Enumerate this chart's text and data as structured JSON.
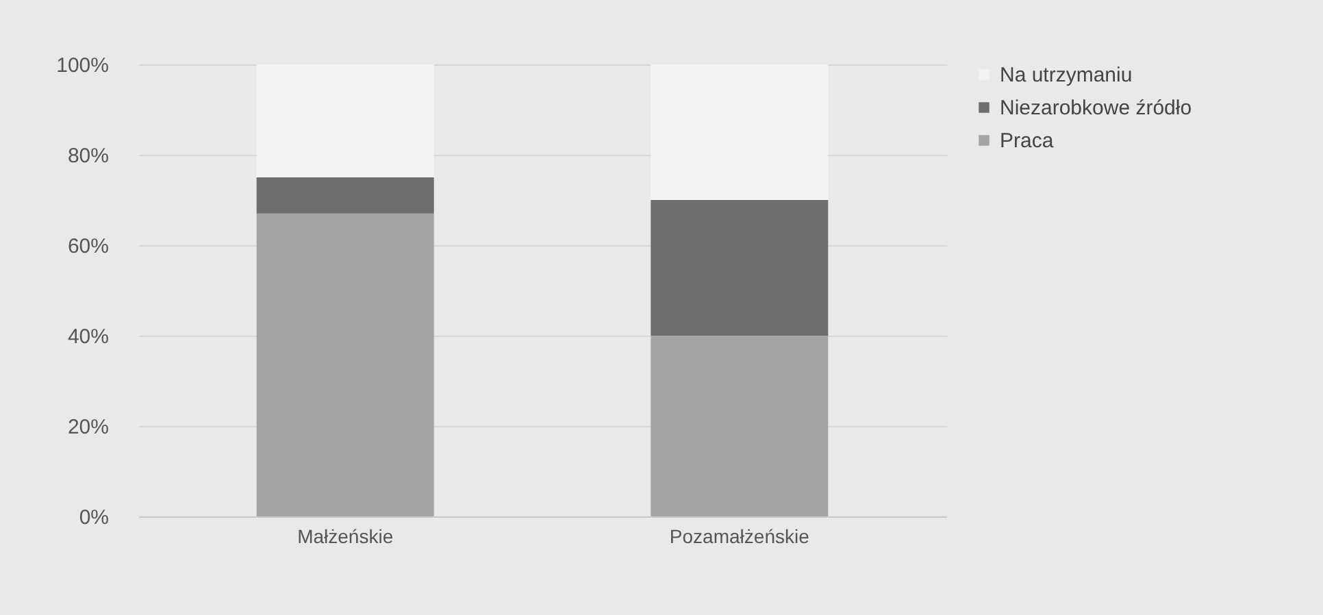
{
  "chart_data": {
    "type": "bar",
    "stacked": true,
    "categories": [
      "Małżeńskie",
      "Pozamałżeńskie"
    ],
    "series": [
      {
        "name": "Praca",
        "color": "#a4a4a4",
        "values": [
          67,
          40
        ]
      },
      {
        "name": "Niezarobkowe źródło",
        "color": "#6e6e6e",
        "values": [
          8,
          30
        ]
      },
      {
        "name": "Na utrzymaniu",
        "color": "#f3f3f3",
        "values": [
          25,
          30
        ]
      }
    ],
    "ylim": [
      0,
      100
    ],
    "yticks": [
      {
        "value": 0,
        "label": "0%"
      },
      {
        "value": 20,
        "label": "20%"
      },
      {
        "value": 40,
        "label": "40%"
      },
      {
        "value": 60,
        "label": "60%"
      },
      {
        "value": 80,
        "label": "80%"
      },
      {
        "value": 100,
        "label": "100%"
      }
    ],
    "grid": "y",
    "legend": "right"
  }
}
